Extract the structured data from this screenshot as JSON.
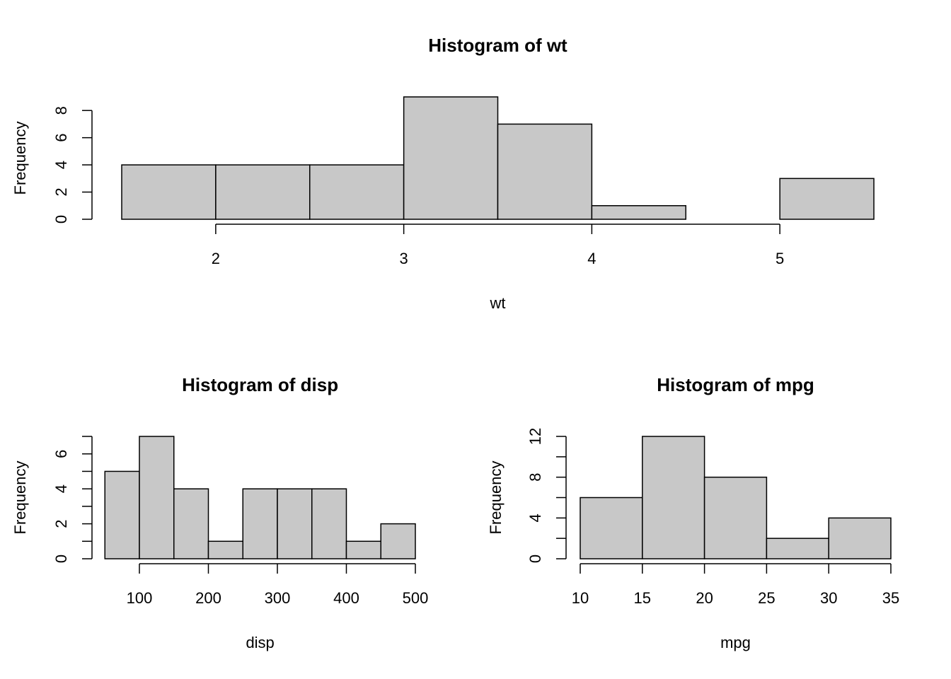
{
  "chart_data": [
    {
      "type": "histogram",
      "title": "Histogram of wt",
      "xlabel": "wt",
      "ylabel": "Frequency",
      "bins": [
        1.5,
        2,
        2.5,
        3,
        3.5,
        4,
        4.5,
        5,
        5.5
      ],
      "values": [
        4,
        4,
        4,
        9,
        7,
        1,
        0,
        3
      ],
      "color": "#c8c8c8",
      "xlim": [
        1.5,
        5.5
      ],
      "xticks": [
        2,
        3,
        4,
        5
      ],
      "ylim": [
        0,
        9
      ],
      "yticks": [
        0,
        2,
        4,
        6,
        8
      ],
      "yminor": []
    },
    {
      "type": "histogram",
      "title": "Histogram of disp",
      "xlabel": "disp",
      "ylabel": "Frequency",
      "bins": [
        50,
        100,
        150,
        200,
        250,
        300,
        350,
        400,
        450,
        500
      ],
      "values": [
        5,
        7,
        4,
        1,
        4,
        4,
        4,
        1,
        2
      ],
      "color": "#c8c8c8",
      "xlim": [
        50,
        500
      ],
      "xticks": [
        100,
        200,
        300,
        400,
        500
      ],
      "ylim": [
        0,
        7
      ],
      "yticks": [
        0,
        2,
        4,
        6
      ],
      "yminor": [
        1,
        3,
        5,
        7
      ]
    },
    {
      "type": "histogram",
      "title": "Histogram of mpg",
      "xlabel": "mpg",
      "ylabel": "Frequency",
      "bins": [
        10,
        15,
        20,
        25,
        30,
        35
      ],
      "values": [
        6,
        12,
        8,
        2,
        4
      ],
      "color": "#c8c8c8",
      "xlim": [
        10,
        35
      ],
      "xticks": [
        10,
        15,
        20,
        25,
        30,
        35
      ],
      "ylim": [
        0,
        12
      ],
      "yticks": [
        0,
        4,
        8,
        12
      ],
      "yminor": [
        2,
        6,
        10
      ]
    }
  ]
}
